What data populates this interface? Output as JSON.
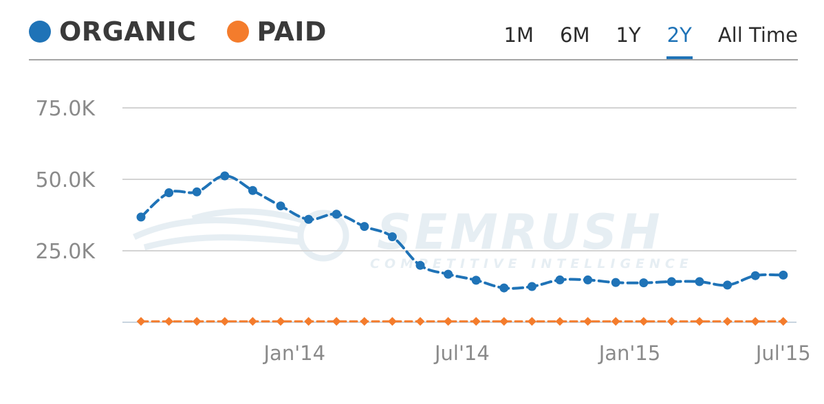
{
  "legend": [
    {
      "label": "ORGANIC",
      "color": "#1f73b7"
    },
    {
      "label": "PAID",
      "color": "#f47c2c"
    }
  ],
  "time_ranges": [
    {
      "label": "1M",
      "active": false
    },
    {
      "label": "6M",
      "active": false
    },
    {
      "label": "1Y",
      "active": false
    },
    {
      "label": "2Y",
      "active": true
    },
    {
      "label": "All Time",
      "active": false
    }
  ],
  "watermark": {
    "brand": "SEMRUSH",
    "tagline": "COMPETITIVE INTELLIGENCE"
  },
  "chart_data": {
    "type": "line",
    "y_ticks": [
      "75.0K",
      "50.0K",
      "25.0K"
    ],
    "y_tick_values": [
      75000,
      50000,
      25000
    ],
    "ylim": [
      0,
      75000
    ],
    "x_tick_labels": [
      "Jan'14",
      "Jul'14",
      "Jan'15",
      "Jul'15"
    ],
    "x_tick_positions": [
      5.5,
      11.5,
      17.5,
      23
    ],
    "grid": true,
    "legend_position": "top-left",
    "series": [
      {
        "name": "ORGANIC",
        "color": "#1f73b7",
        "values": [
          36800,
          45300,
          45600,
          51200,
          46100,
          40700,
          36000,
          37800,
          33500,
          29900,
          19900,
          16800,
          14700,
          12000,
          12500,
          14800,
          14800,
          13900,
          13800,
          14200,
          14200,
          13000,
          16300,
          16500
        ]
      },
      {
        "name": "PAID",
        "color": "#f47c2c",
        "values": [
          300,
          300,
          300,
          300,
          300,
          300,
          300,
          300,
          300,
          300,
          300,
          300,
          300,
          300,
          300,
          300,
          300,
          300,
          300,
          300,
          300,
          300,
          300,
          300
        ]
      }
    ]
  }
}
